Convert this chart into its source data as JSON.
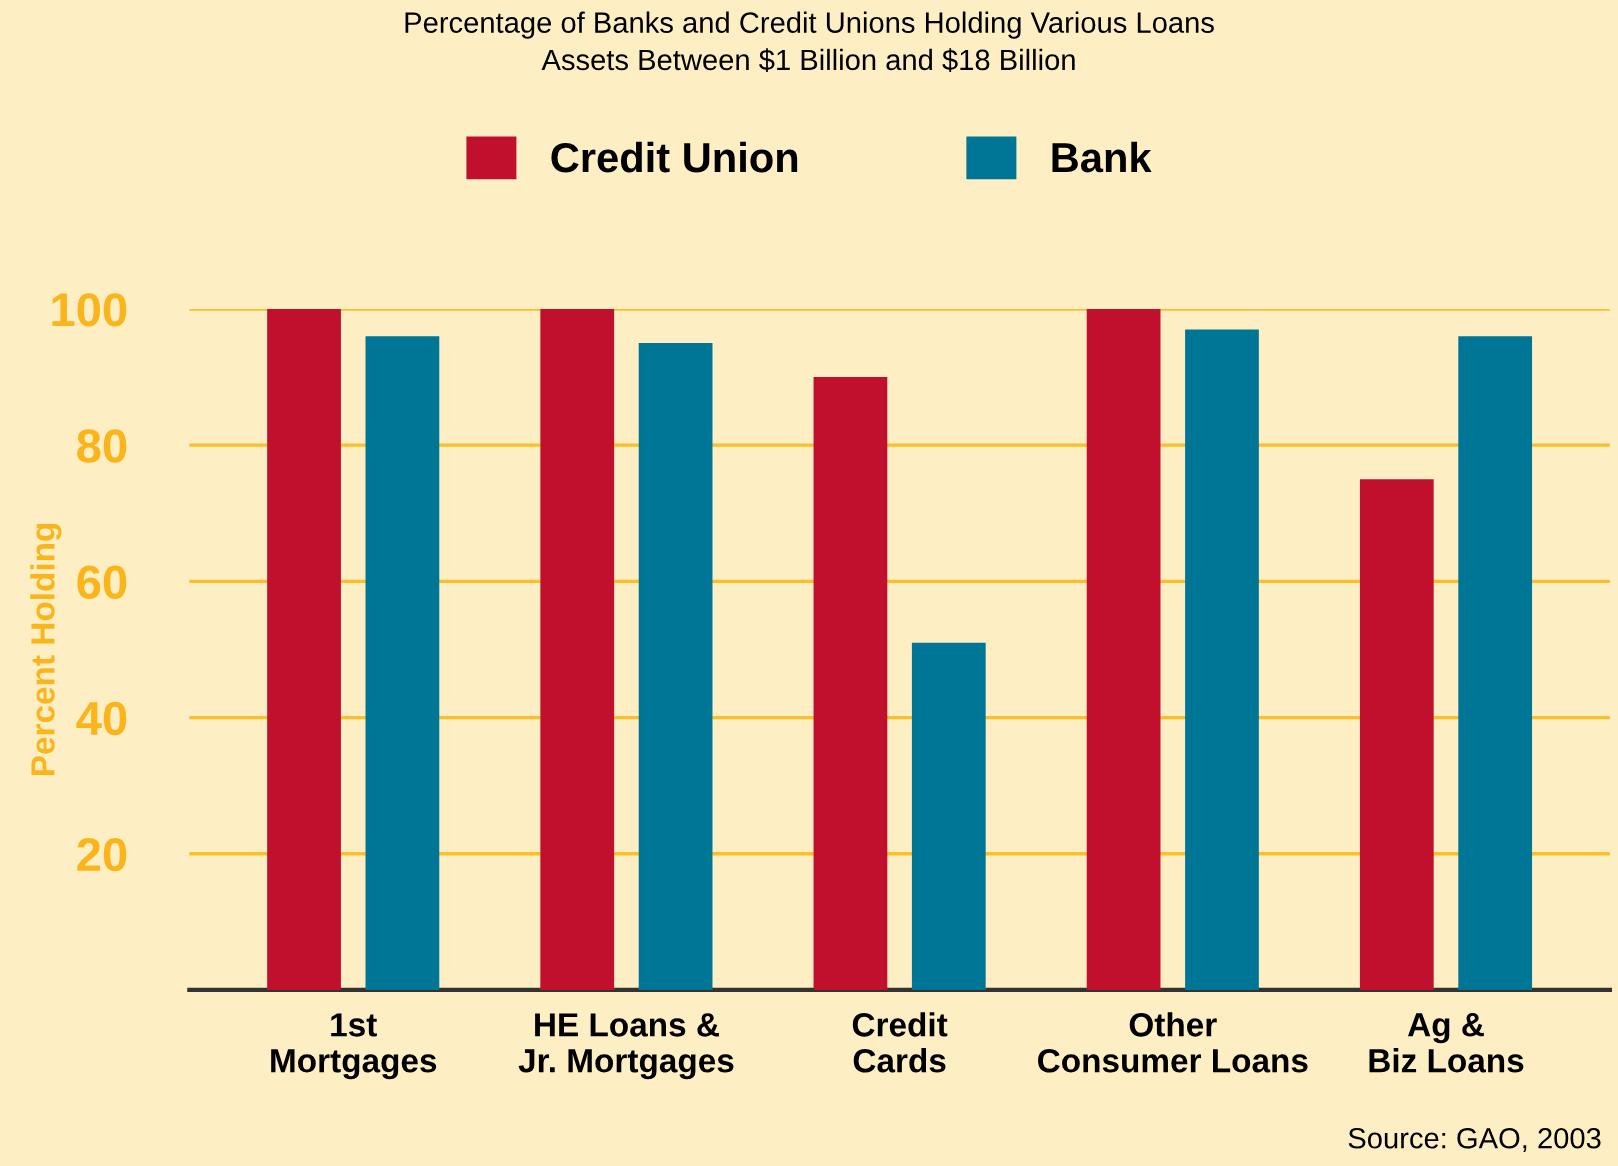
{
  "chart_data": {
    "type": "bar",
    "title": "Percentage of Banks and Credit Unions Holding Various Loans",
    "subtitle": "Assets Between $1 Billion and $18 Billion",
    "ylabel": "Percent Holding",
    "categories": [
      "1st\nMortgages",
      "HE Loans &\nJr. Mortgages",
      "Credit\nCards",
      "Other\nConsumer Loans",
      "Ag &\nBiz Loans"
    ],
    "series": [
      {
        "name": "Credit Union",
        "color": "#c1102e",
        "values": [
          100,
          100,
          90,
          100,
          75
        ]
      },
      {
        "name": "Bank",
        "color": "#007696",
        "values": [
          96,
          95,
          51,
          97,
          96
        ]
      }
    ],
    "ylim": [
      0,
      100
    ],
    "yticks": [
      20,
      40,
      60,
      80,
      100
    ],
    "grid": "y",
    "legend": "top",
    "annotations": [
      "Source: GAO, 2003"
    ]
  }
}
